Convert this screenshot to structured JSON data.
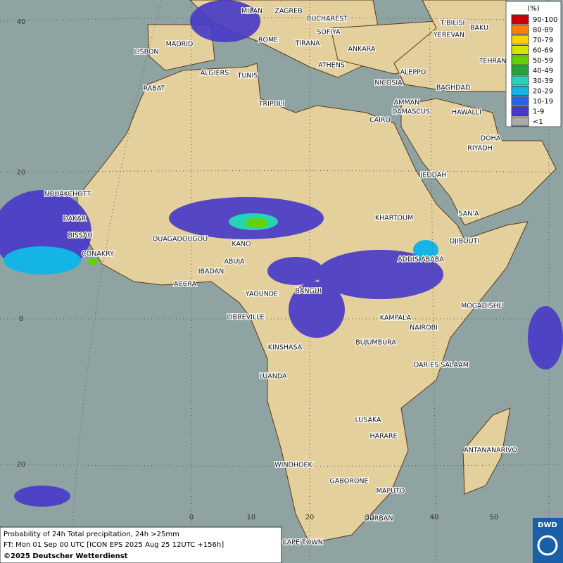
{
  "legend": {
    "title": "(%)",
    "items": [
      {
        "label": "90-100",
        "color": "#cc0000"
      },
      {
        "label": "80-89",
        "color": "#ff7f00"
      },
      {
        "label": "70-79",
        "color": "#ffd200"
      },
      {
        "label": "60-69",
        "color": "#d2e600"
      },
      {
        "label": "50-59",
        "color": "#64d200"
      },
      {
        "label": "40-49",
        "color": "#28a03c"
      },
      {
        "label": "30-39",
        "color": "#28d2b4"
      },
      {
        "label": "20-29",
        "color": "#14b4e6"
      },
      {
        "label": "10-19",
        "color": "#2864e6"
      },
      {
        "label": "1-9",
        "color": "#4638c8"
      },
      {
        "label": "<1",
        "color": "#aaaaaa"
      }
    ]
  },
  "cities": [
    "MILAN",
    "ZAGREB",
    "BUCHAREST",
    "T'BILISI",
    "BAKU",
    "SOFIYA",
    "YEREVAN",
    "MADRID",
    "ROME",
    "TIRANA",
    "ANKARA",
    "TEHRAN",
    "LISBON",
    "ATHENS",
    "ALGIERS",
    "TUNIS",
    "ALEPPO",
    "RABAT",
    "NICOSIA",
    "BAGHDAD",
    "DAMASCUS",
    "AMMAN",
    "TRIPOLI",
    "HAWALLI",
    "CAIRO",
    "DOHA",
    "RIYADH",
    "JEDDAH",
    "NOUAKCHOTT",
    "SAN'A",
    "DAKAR",
    "KHARTOUM",
    "BISSAU",
    "OUAGADOUGOU",
    "KANO",
    "DJIBOUTI",
    "CONAKRY",
    "ABUJA",
    "ADDIS ABABA",
    "IBADAN",
    "ACCRA",
    "YAOUNDE",
    "BANGUI",
    "MOGADISHU",
    "LIBREVILLE",
    "KAMPALA",
    "NAIROBI",
    "KINSHASA",
    "BUJUMBURA",
    "DAR ES SALAAM",
    "LUANDA",
    "LUSAKA",
    "HARARE",
    "ANTANANARIVO",
    "WINDHOEK",
    "GABORONE",
    "MAPUTO",
    "DURBAN",
    "CAPE TOWN"
  ],
  "lat_labels": [
    "40",
    "20",
    "0",
    "20"
  ],
  "lon_labels": [
    "0",
    "10",
    "20",
    "30",
    "40",
    "50"
  ],
  "footer": {
    "line1": "Probability of 24h Total precipitation, 24h >25mm",
    "line2": "FT: Mon 01 Sep 00 UTC [ICON EPS 2025 Aug 25 12UTC +156h]",
    "line3": "©2025 Deutscher Wetterdienst"
  },
  "logo": "DWD"
}
